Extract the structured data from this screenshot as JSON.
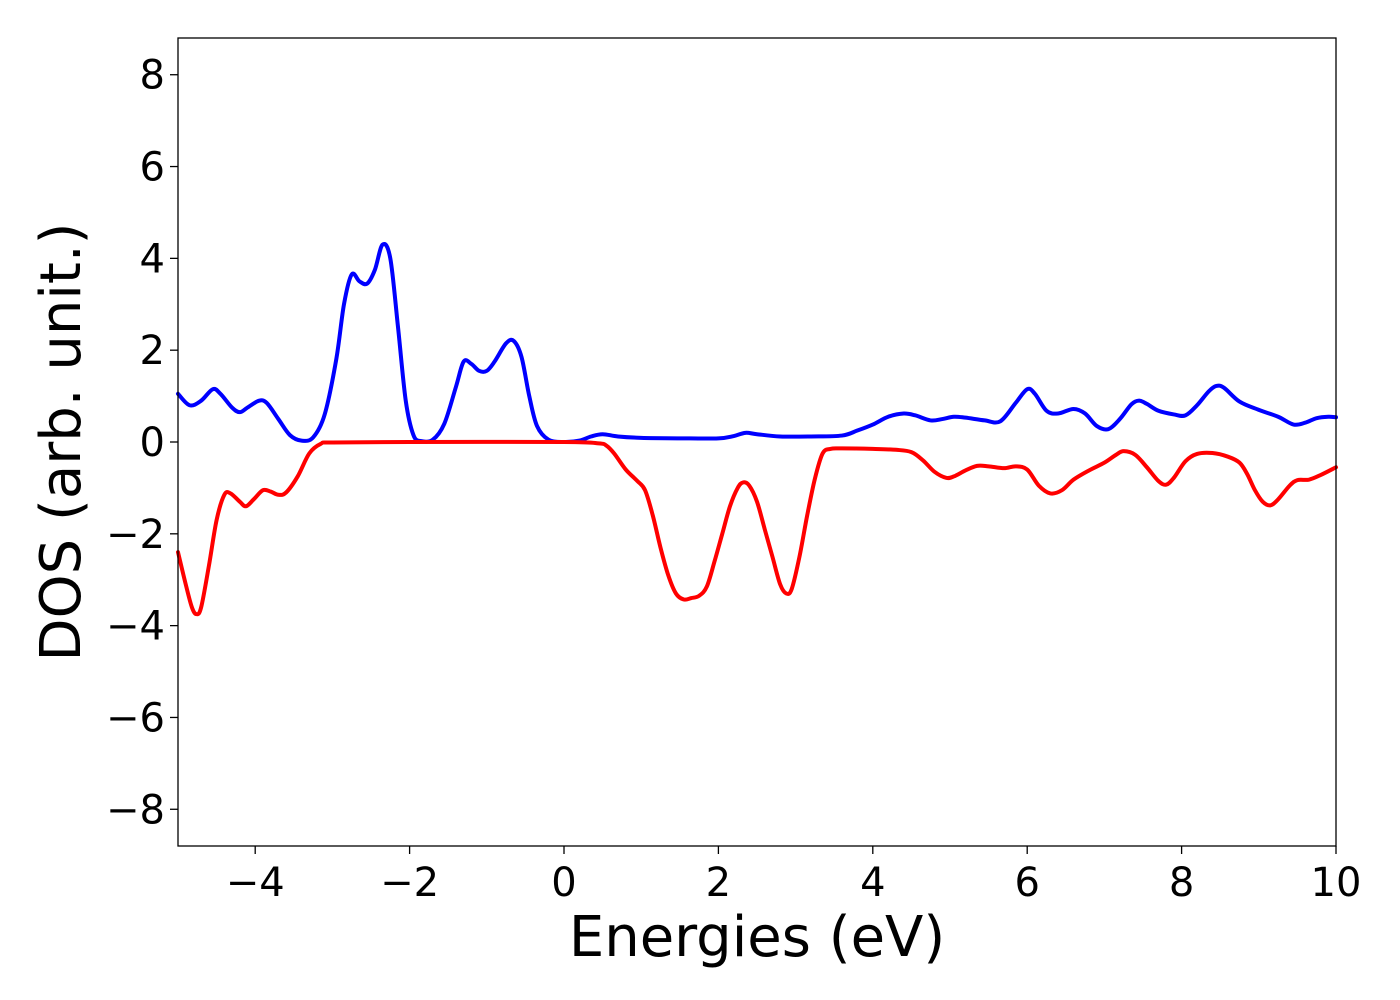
{
  "chart_data": {
    "type": "line",
    "title": "",
    "xlabel": "Energies (eV)",
    "ylabel": "DOS (arb. unit.)",
    "xlim": [
      -5,
      10
    ],
    "ylim": [
      -8.8,
      8.8
    ],
    "xticks": [
      -4,
      -2,
      0,
      2,
      4,
      6,
      8,
      10
    ],
    "yticks": [
      -8,
      -6,
      -4,
      -2,
      0,
      2,
      4,
      6,
      8
    ],
    "xtick_labels": [
      "−4",
      "−2",
      "0",
      "2",
      "4",
      "6",
      "8",
      "10"
    ],
    "ytick_labels": [
      "−8",
      "−6",
      "−4",
      "−2",
      "0",
      "2",
      "4",
      "6",
      "8"
    ],
    "grid": false,
    "legend": false,
    "series": [
      {
        "color": "#0000ff",
        "points": [
          [
            -5.0,
            1.05
          ],
          [
            -4.85,
            0.8
          ],
          [
            -4.7,
            0.9
          ],
          [
            -4.55,
            1.15
          ],
          [
            -4.45,
            1.05
          ],
          [
            -4.3,
            0.75
          ],
          [
            -4.2,
            0.65
          ],
          [
            -4.1,
            0.75
          ],
          [
            -3.95,
            0.9
          ],
          [
            -3.85,
            0.85
          ],
          [
            -3.7,
            0.5
          ],
          [
            -3.55,
            0.15
          ],
          [
            -3.4,
            0.03
          ],
          [
            -3.25,
            0.1
          ],
          [
            -3.1,
            0.6
          ],
          [
            -2.95,
            1.8
          ],
          [
            -2.85,
            3.0
          ],
          [
            -2.75,
            3.65
          ],
          [
            -2.65,
            3.5
          ],
          [
            -2.55,
            3.45
          ],
          [
            -2.45,
            3.75
          ],
          [
            -2.35,
            4.3
          ],
          [
            -2.25,
            4.0
          ],
          [
            -2.15,
            2.5
          ],
          [
            -2.05,
            0.9
          ],
          [
            -1.95,
            0.15
          ],
          [
            -1.85,
            0.02
          ],
          [
            -1.7,
            0.05
          ],
          [
            -1.55,
            0.4
          ],
          [
            -1.4,
            1.2
          ],
          [
            -1.3,
            1.75
          ],
          [
            -1.2,
            1.7
          ],
          [
            -1.1,
            1.55
          ],
          [
            -1.0,
            1.55
          ],
          [
            -0.9,
            1.75
          ],
          [
            -0.75,
            2.15
          ],
          [
            -0.65,
            2.2
          ],
          [
            -0.55,
            1.85
          ],
          [
            -0.45,
            1.0
          ],
          [
            -0.35,
            0.35
          ],
          [
            -0.2,
            0.05
          ],
          [
            0.0,
            0.0
          ],
          [
            0.2,
            0.03
          ],
          [
            0.35,
            0.12
          ],
          [
            0.5,
            0.17
          ],
          [
            0.7,
            0.12
          ],
          [
            1.0,
            0.09
          ],
          [
            1.5,
            0.08
          ],
          [
            2.0,
            0.08
          ],
          [
            2.2,
            0.13
          ],
          [
            2.35,
            0.2
          ],
          [
            2.5,
            0.17
          ],
          [
            2.8,
            0.12
          ],
          [
            3.2,
            0.12
          ],
          [
            3.6,
            0.14
          ],
          [
            3.8,
            0.25
          ],
          [
            4.0,
            0.38
          ],
          [
            4.2,
            0.55
          ],
          [
            4.4,
            0.62
          ],
          [
            4.55,
            0.58
          ],
          [
            4.75,
            0.47
          ],
          [
            4.9,
            0.5
          ],
          [
            5.05,
            0.55
          ],
          [
            5.2,
            0.53
          ],
          [
            5.45,
            0.47
          ],
          [
            5.65,
            0.45
          ],
          [
            5.85,
            0.85
          ],
          [
            6.0,
            1.15
          ],
          [
            6.1,
            1.05
          ],
          [
            6.25,
            0.68
          ],
          [
            6.4,
            0.62
          ],
          [
            6.6,
            0.72
          ],
          [
            6.75,
            0.62
          ],
          [
            6.9,
            0.35
          ],
          [
            7.05,
            0.28
          ],
          [
            7.2,
            0.5
          ],
          [
            7.35,
            0.82
          ],
          [
            7.45,
            0.9
          ],
          [
            7.55,
            0.83
          ],
          [
            7.7,
            0.68
          ],
          [
            7.9,
            0.6
          ],
          [
            8.05,
            0.58
          ],
          [
            8.2,
            0.8
          ],
          [
            8.35,
            1.1
          ],
          [
            8.45,
            1.22
          ],
          [
            8.55,
            1.18
          ],
          [
            8.75,
            0.88
          ],
          [
            9.0,
            0.7
          ],
          [
            9.25,
            0.55
          ],
          [
            9.45,
            0.38
          ],
          [
            9.6,
            0.42
          ],
          [
            9.75,
            0.52
          ],
          [
            9.9,
            0.55
          ],
          [
            10.0,
            0.54
          ]
        ]
      },
      {
        "color": "#ff0000",
        "points": [
          [
            -5.0,
            -2.4
          ],
          [
            -4.9,
            -3.1
          ],
          [
            -4.82,
            -3.6
          ],
          [
            -4.76,
            -3.75
          ],
          [
            -4.7,
            -3.6
          ],
          [
            -4.6,
            -2.7
          ],
          [
            -4.5,
            -1.7
          ],
          [
            -4.4,
            -1.15
          ],
          [
            -4.32,
            -1.12
          ],
          [
            -4.2,
            -1.3
          ],
          [
            -4.12,
            -1.4
          ],
          [
            -4.02,
            -1.25
          ],
          [
            -3.9,
            -1.05
          ],
          [
            -3.8,
            -1.08
          ],
          [
            -3.7,
            -1.15
          ],
          [
            -3.6,
            -1.1
          ],
          [
            -3.45,
            -0.75
          ],
          [
            -3.3,
            -0.25
          ],
          [
            -3.15,
            -0.04
          ],
          [
            -3.0,
            -0.01
          ],
          [
            -2.0,
            0.0
          ],
          [
            0.0,
            0.0
          ],
          [
            0.45,
            -0.03
          ],
          [
            0.55,
            -0.08
          ],
          [
            0.65,
            -0.25
          ],
          [
            0.8,
            -0.6
          ],
          [
            0.95,
            -0.85
          ],
          [
            1.05,
            -1.05
          ],
          [
            1.15,
            -1.6
          ],
          [
            1.25,
            -2.3
          ],
          [
            1.35,
            -2.9
          ],
          [
            1.45,
            -3.3
          ],
          [
            1.55,
            -3.43
          ],
          [
            1.65,
            -3.4
          ],
          [
            1.75,
            -3.35
          ],
          [
            1.85,
            -3.15
          ],
          [
            1.95,
            -2.6
          ],
          [
            2.05,
            -2.0
          ],
          [
            2.15,
            -1.4
          ],
          [
            2.25,
            -1.0
          ],
          [
            2.32,
            -0.88
          ],
          [
            2.4,
            -0.95
          ],
          [
            2.5,
            -1.3
          ],
          [
            2.6,
            -1.9
          ],
          [
            2.7,
            -2.5
          ],
          [
            2.8,
            -3.1
          ],
          [
            2.88,
            -3.3
          ],
          [
            2.95,
            -3.2
          ],
          [
            3.05,
            -2.5
          ],
          [
            3.15,
            -1.6
          ],
          [
            3.25,
            -0.8
          ],
          [
            3.35,
            -0.25
          ],
          [
            3.45,
            -0.15
          ],
          [
            3.6,
            -0.14
          ],
          [
            4.0,
            -0.15
          ],
          [
            4.3,
            -0.17
          ],
          [
            4.5,
            -0.22
          ],
          [
            4.65,
            -0.4
          ],
          [
            4.8,
            -0.65
          ],
          [
            4.95,
            -0.78
          ],
          [
            5.05,
            -0.75
          ],
          [
            5.2,
            -0.62
          ],
          [
            5.35,
            -0.52
          ],
          [
            5.5,
            -0.53
          ],
          [
            5.7,
            -0.57
          ],
          [
            5.85,
            -0.53
          ],
          [
            6.0,
            -0.6
          ],
          [
            6.15,
            -0.95
          ],
          [
            6.3,
            -1.12
          ],
          [
            6.45,
            -1.05
          ],
          [
            6.6,
            -0.82
          ],
          [
            6.8,
            -0.62
          ],
          [
            7.0,
            -0.45
          ],
          [
            7.15,
            -0.28
          ],
          [
            7.25,
            -0.2
          ],
          [
            7.4,
            -0.28
          ],
          [
            7.55,
            -0.55
          ],
          [
            7.7,
            -0.85
          ],
          [
            7.8,
            -0.93
          ],
          [
            7.9,
            -0.78
          ],
          [
            8.05,
            -0.42
          ],
          [
            8.2,
            -0.26
          ],
          [
            8.4,
            -0.24
          ],
          [
            8.6,
            -0.32
          ],
          [
            8.75,
            -0.45
          ],
          [
            8.85,
            -0.7
          ],
          [
            8.95,
            -1.05
          ],
          [
            9.05,
            -1.3
          ],
          [
            9.15,
            -1.38
          ],
          [
            9.25,
            -1.25
          ],
          [
            9.4,
            -0.95
          ],
          [
            9.5,
            -0.83
          ],
          [
            9.65,
            -0.82
          ],
          [
            9.8,
            -0.72
          ],
          [
            10.0,
            -0.55
          ]
        ]
      }
    ]
  }
}
